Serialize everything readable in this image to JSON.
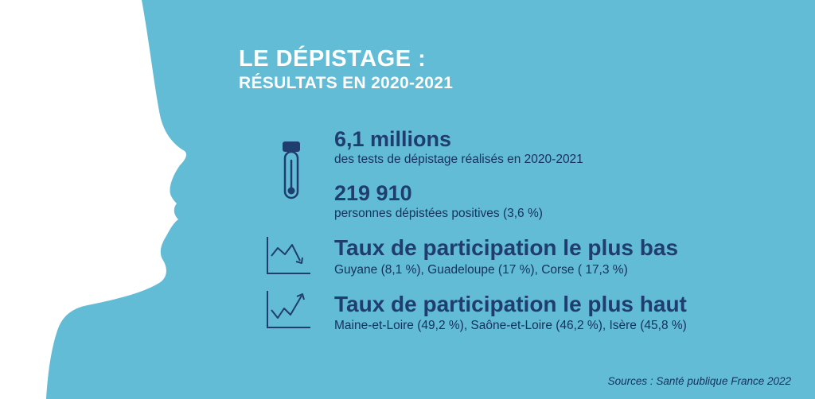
{
  "header": {
    "title_line1": "LE DÉPISTAGE :",
    "title_line2": "RÉSULTATS EN 2020-2021"
  },
  "stats": {
    "tests": {
      "value": "6,1 millions",
      "description": "des tests de dépistage réalisés en 2020-2021",
      "icon": "test-tube-icon"
    },
    "positives": {
      "value": "219 910",
      "description": "personnes dépistées positives (3,6 %)"
    }
  },
  "participation": {
    "lowest": {
      "title": "Taux de participation le plus bas",
      "detail": "Guyane (8,1 %), Guadeloupe (17 %), Corse ( 17,3 %)",
      "icon": "trend-down-icon"
    },
    "highest": {
      "title": "Taux de participation le plus haut",
      "detail": "Maine-et-Loire (49,2 %), Saône-et-Loire (46,2 %), Isère (45,8 %)",
      "icon": "trend-up-icon"
    }
  },
  "footer": {
    "sources": "Sources : Santé publique France 2022"
  },
  "colors": {
    "background": "#62bcd5",
    "silhouette": "#ffffff",
    "title": "#ffffff",
    "text_dark": "#1f3d6e"
  }
}
